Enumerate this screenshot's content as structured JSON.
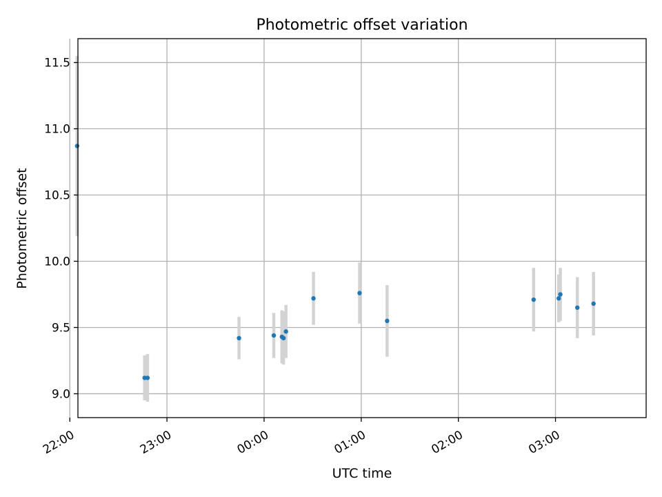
{
  "chart_data": {
    "type": "scatter",
    "title": "Photometric offset variation",
    "xlabel": "UTC time",
    "ylabel": "Photometric offset",
    "x_unit": "minutes since 00:00 UTC",
    "xlim": [
      -115,
      236
    ],
    "ylim": [
      8.82,
      11.68
    ],
    "grid": true,
    "x_ticks": [
      {
        "value": -120,
        "label": "22:00"
      },
      {
        "value": -60,
        "label": "23:00"
      },
      {
        "value": 0,
        "label": "00:00"
      },
      {
        "value": 60,
        "label": "01:00"
      },
      {
        "value": 120,
        "label": "02:00"
      },
      {
        "value": 180,
        "label": "03:00"
      }
    ],
    "y_ticks": [
      {
        "value": 9.0,
        "label": "9.0"
      },
      {
        "value": 9.5,
        "label": "9.5"
      },
      {
        "value": 10.0,
        "label": "10.0"
      },
      {
        "value": 10.5,
        "label": "10.5"
      },
      {
        "value": 11.0,
        "label": "11.0"
      },
      {
        "value": 11.5,
        "label": "11.5"
      }
    ],
    "series": [
      {
        "name": "offset",
        "color": "#1f77b4",
        "errorbar_color": "#d3d3d3",
        "points": [
          {
            "x": -115.5,
            "y": 10.87,
            "err": 0.68
          },
          {
            "x": -73.8,
            "y": 9.12,
            "err": 0.17
          },
          {
            "x": -72.0,
            "y": 9.12,
            "err": 0.18
          },
          {
            "x": -15.5,
            "y": 9.42,
            "err": 0.16
          },
          {
            "x": 6.0,
            "y": 9.44,
            "err": 0.17
          },
          {
            "x": 11.0,
            "y": 9.43,
            "err": 0.2
          },
          {
            "x": 12.0,
            "y": 9.42,
            "err": 0.2
          },
          {
            "x": 13.5,
            "y": 9.47,
            "err": 0.2
          },
          {
            "x": 30.5,
            "y": 9.72,
            "err": 0.2
          },
          {
            "x": 59.0,
            "y": 9.76,
            "err": 0.23
          },
          {
            "x": 76.0,
            "y": 9.55,
            "err": 0.27
          },
          {
            "x": 166.5,
            "y": 9.71,
            "err": 0.24
          },
          {
            "x": 182.0,
            "y": 9.72,
            "err": 0.18
          },
          {
            "x": 183.0,
            "y": 9.75,
            "err": 0.2
          },
          {
            "x": 193.5,
            "y": 9.65,
            "err": 0.23
          },
          {
            "x": 203.5,
            "y": 9.68,
            "err": 0.24
          }
        ]
      }
    ]
  }
}
